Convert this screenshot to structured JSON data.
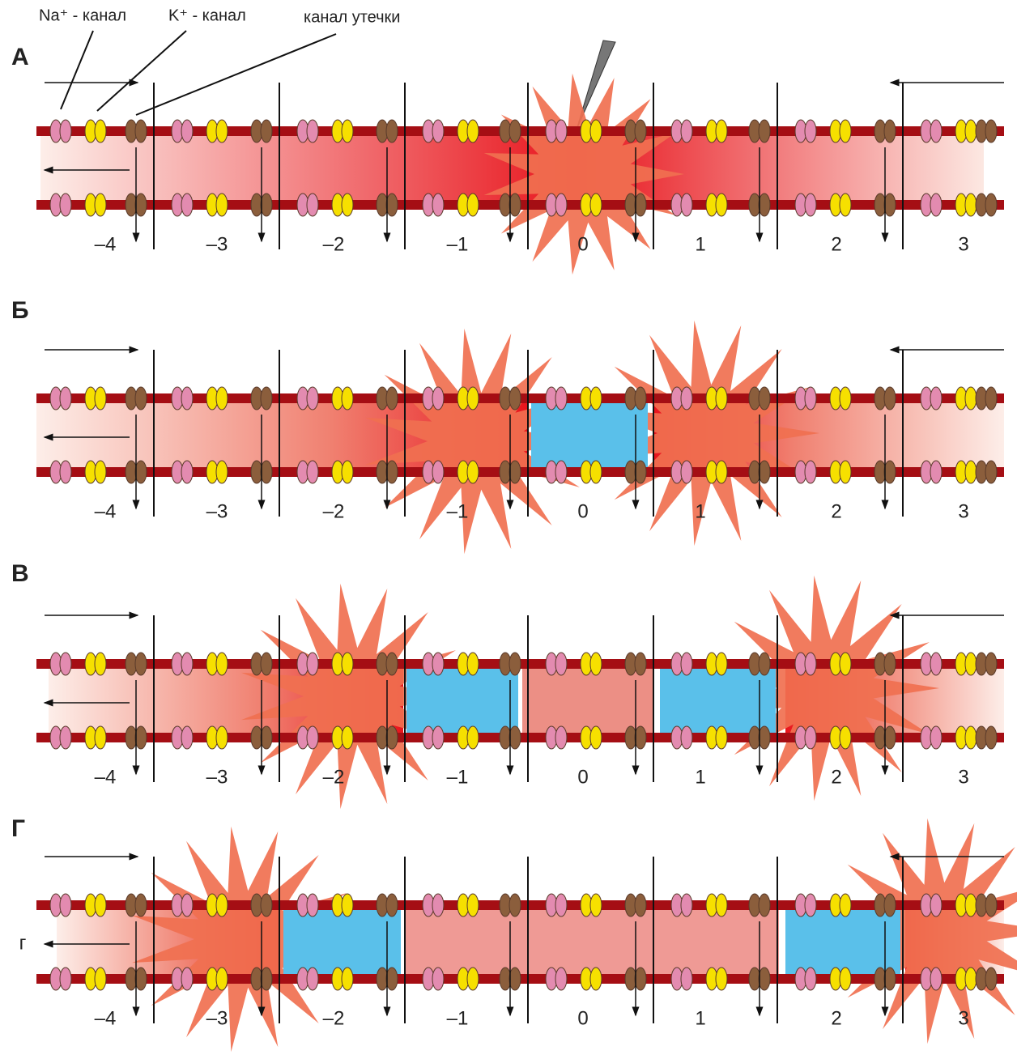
{
  "labels": {
    "na_channel": "Na⁺ - канал",
    "k_channel": "K⁺ - канал",
    "leak_channel": "канал утечки"
  },
  "panels": [
    {
      "letter": "А",
      "segments": [
        "–4",
        "–3",
        "–2",
        "–1",
        "0",
        "1",
        "2",
        "3"
      ]
    },
    {
      "letter": "Б",
      "segments": [
        "–4",
        "–3",
        "–2",
        "–1",
        "0",
        "1",
        "2",
        "3"
      ]
    },
    {
      "letter": "В",
      "segments": [
        "–4",
        "–3",
        "–2",
        "–1",
        "0",
        "1",
        "2",
        "3"
      ]
    },
    {
      "letter": "Г",
      "segments": [
        "–4",
        "–3",
        "–2",
        "–1",
        "0",
        "1",
        "2",
        "3"
      ],
      "side_label": "г"
    }
  ]
}
